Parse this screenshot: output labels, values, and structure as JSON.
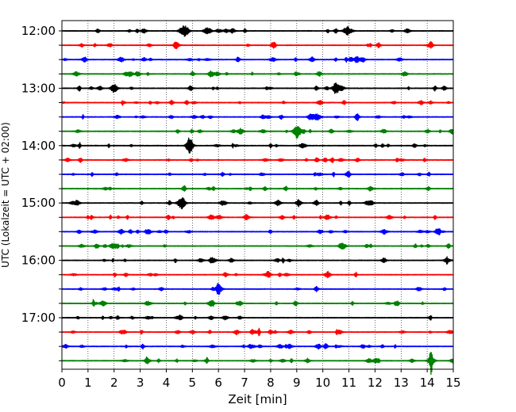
{
  "chart_data": {
    "type": "line",
    "title": "",
    "xlabel": "Zeit  [min]",
    "ylabel": "UTC (Lokalzeit = UTC + 02:00)",
    "xlim": [
      0,
      15
    ],
    "x_ticks": [
      "0",
      "1",
      "2",
      "3",
      "4",
      "5",
      "6",
      "7",
      "8",
      "9",
      "10",
      "11",
      "12",
      "13",
      "14",
      "15"
    ],
    "y_tick_labels": [
      "12:00",
      "13:00",
      "14:00",
      "15:00",
      "16:00",
      "17:00"
    ],
    "grid": "vertical dotted lines at each minute",
    "trace_interval_min": 15,
    "colors": [
      "#000000",
      "#ff0000",
      "#0000ff",
      "#008000"
    ],
    "series": [
      {
        "start": "12:00",
        "color": "#000000"
      },
      {
        "start": "12:15",
        "color": "#ff0000"
      },
      {
        "start": "12:30",
        "color": "#0000ff"
      },
      {
        "start": "12:45",
        "color": "#008000"
      },
      {
        "start": "13:00",
        "color": "#000000"
      },
      {
        "start": "13:15",
        "color": "#ff0000"
      },
      {
        "start": "13:30",
        "color": "#0000ff"
      },
      {
        "start": "13:45",
        "color": "#008000"
      },
      {
        "start": "14:00",
        "color": "#000000"
      },
      {
        "start": "14:15",
        "color": "#ff0000"
      },
      {
        "start": "14:30",
        "color": "#0000ff"
      },
      {
        "start": "14:45",
        "color": "#008000"
      },
      {
        "start": "15:00",
        "color": "#000000"
      },
      {
        "start": "15:15",
        "color": "#ff0000"
      },
      {
        "start": "15:30",
        "color": "#0000ff"
      },
      {
        "start": "15:45",
        "color": "#008000"
      },
      {
        "start": "16:00",
        "color": "#000000"
      },
      {
        "start": "16:15",
        "color": "#ff0000"
      },
      {
        "start": "16:30",
        "color": "#0000ff"
      },
      {
        "start": "16:45",
        "color": "#008000"
      },
      {
        "start": "17:00",
        "color": "#000000"
      },
      {
        "start": "17:15",
        "color": "#ff0000"
      },
      {
        "start": "17:30",
        "color": "#0000ff"
      },
      {
        "start": "17:45",
        "color": "#008000"
      }
    ],
    "events": [
      {
        "trace": "12:00",
        "t": 4.75
      },
      {
        "trace": "12:00",
        "t": 10.9
      },
      {
        "trace": "13:00",
        "t": 2.0
      },
      {
        "trace": "13:00",
        "t": 10.5
      },
      {
        "trace": "13:45",
        "t": 9.0
      },
      {
        "trace": "14:00",
        "t": 4.9
      },
      {
        "trace": "15:00",
        "t": 4.6
      },
      {
        "trace": "17:45",
        "t": 14.15
      }
    ]
  }
}
